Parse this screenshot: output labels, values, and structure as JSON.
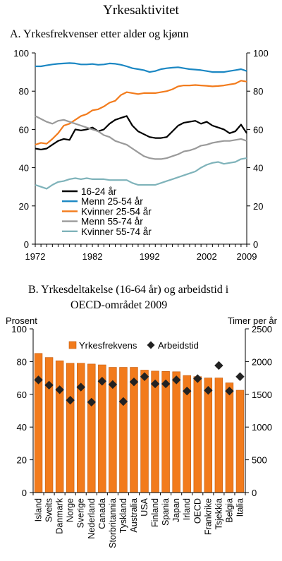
{
  "figure_title": "Yrkesaktivitet",
  "chart_data": [
    {
      "type": "line",
      "title": "A.  Yrkesfrekvenser etter alder og kjønn",
      "ylim": [
        0,
        100
      ],
      "y_ticks": [
        0,
        20,
        40,
        60,
        80,
        100
      ],
      "xlim": [
        1972,
        2009
      ],
      "x_ticks": [
        1972,
        1982,
        1992,
        2002,
        2009
      ],
      "grid": false,
      "legend_position": "bottom-left",
      "x": [
        1972,
        1973,
        1974,
        1975,
        1976,
        1977,
        1978,
        1979,
        1980,
        1981,
        1982,
        1983,
        1984,
        1985,
        1986,
        1987,
        1988,
        1989,
        1990,
        1991,
        1992,
        1993,
        1994,
        1995,
        1996,
        1997,
        1998,
        1999,
        2000,
        2001,
        2002,
        2003,
        2004,
        2005,
        2006,
        2007,
        2008,
        2009
      ],
      "series": [
        {
          "name": "16-24 år",
          "color": "#000000",
          "values": [
            50,
            49.5,
            50,
            52,
            54,
            55,
            54.5,
            60,
            59.5,
            60,
            61,
            59,
            60,
            63,
            65,
            66,
            67,
            62,
            59,
            57.5,
            56,
            55.5,
            55.5,
            56,
            59,
            62,
            63.5,
            64,
            64.5,
            63,
            64,
            62,
            61,
            60,
            58,
            59,
            62.5,
            58
          ]
        },
        {
          "name": "Menn 25-54 år",
          "color": "#1b87c3",
          "values": [
            93,
            93,
            93.5,
            94,
            94.3,
            94.5,
            94.7,
            94.5,
            94,
            94,
            94.2,
            93.8,
            94,
            94.5,
            94.3,
            93.8,
            93,
            92,
            91.5,
            91,
            90,
            90.5,
            91.5,
            92,
            92.3,
            92.5,
            92,
            91.5,
            91.3,
            91,
            90.5,
            90,
            90,
            90,
            90.5,
            91,
            91.5,
            90.5
          ]
        },
        {
          "name": "Kvinner 25-54 år",
          "color": "#f27b1c",
          "values": [
            52,
            53,
            52.5,
            55,
            58,
            62,
            63,
            65,
            67,
            68,
            70,
            70.5,
            72,
            74,
            75,
            78,
            79.5,
            79,
            78.5,
            79,
            79,
            79,
            79.5,
            80,
            81,
            82.5,
            83,
            83,
            83.2,
            83,
            82.8,
            82.5,
            82.7,
            83,
            83.5,
            84,
            85.5,
            85
          ]
        },
        {
          "name": "Menn 55-74 år",
          "color": "#9a9a9a",
          "values": [
            67,
            65.5,
            64,
            63,
            64.5,
            65,
            64,
            63,
            62,
            61,
            60,
            59,
            57,
            56,
            54,
            53,
            52,
            50,
            48,
            46,
            45,
            44.5,
            44.5,
            45,
            46,
            47,
            48.5,
            49,
            50,
            51.5,
            52,
            53,
            53.5,
            54,
            54,
            54.5,
            55,
            54
          ]
        },
        {
          "name": "Kvinner 55-74 år",
          "color": "#7fb3ba",
          "values": [
            31,
            30,
            29,
            31,
            32.5,
            33,
            34,
            34.5,
            34,
            34.5,
            34,
            34,
            34,
            33.5,
            33.5,
            33.5,
            33.5,
            32,
            31,
            31,
            31,
            31,
            32,
            33,
            34,
            35,
            36,
            37,
            38,
            40,
            41.5,
            42.5,
            43,
            42,
            42.5,
            43,
            44.5,
            45
          ]
        }
      ]
    },
    {
      "type": "bar",
      "title": [
        "B. Yrkesdeltakelse (16-64 år) og arbeidstid i",
        "OECD-området 2009"
      ],
      "ylabel": "Prosent",
      "y2label": "Timer per år",
      "ylim": [
        0,
        100
      ],
      "y_ticks": [
        0,
        20,
        40,
        60,
        80,
        100
      ],
      "y2lim": [
        0,
        2500
      ],
      "y2_ticks": [
        0,
        500,
        1000,
        1500,
        2000,
        2500
      ],
      "legend_position": "top",
      "categories": [
        "Island",
        "Sveits",
        "Danmark",
        "Norge",
        "Sverige",
        "Nederland",
        "Canada",
        "Storbritannia",
        "Tyskland",
        "Australia",
        "USA",
        "Finland",
        "Spania",
        "Japan",
        "Irland",
        "OECD",
        "Frankrike",
        "Tsjekkia",
        "Belgia",
        "Italia"
      ],
      "series": [
        {
          "name": "Yrkesfrekvens",
          "axis": "left",
          "color": "#f27b1c",
          "values": [
            85,
            82.5,
            80.5,
            79,
            79,
            78.5,
            78,
            76.5,
            76.5,
            76.5,
            74.8,
            74.2,
            74,
            73.8,
            71.5,
            70.8,
            70,
            70,
            67,
            62.5
          ]
        },
        {
          "name": "Arbeidstid",
          "axis": "right",
          "color": "#222222",
          "marker": "diamond",
          "values": [
            1720,
            1640,
            1570,
            1410,
            1610,
            1380,
            1700,
            1650,
            1390,
            1690,
            1770,
            1660,
            1660,
            1720,
            1550,
            1740,
            1560,
            1940,
            1550,
            1770
          ]
        }
      ]
    }
  ]
}
